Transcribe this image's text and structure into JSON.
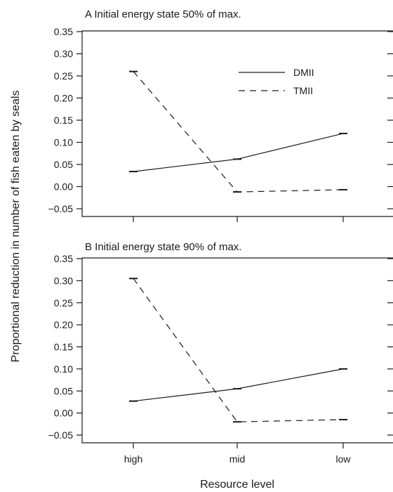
{
  "axis": {
    "ylabel": "Proportional reduction in number of fish eaten by seals",
    "xlabel": "Resource level"
  },
  "legend": [
    {
      "label": "DMII",
      "dash": "solid"
    },
    {
      "label": "TMII",
      "dash": "dashed"
    }
  ],
  "chart_data": [
    {
      "type": "line",
      "title": "A   Initial energy state 50% of max.",
      "categories": [
        "high",
        "mid",
        "low"
      ],
      "ylim": [
        -0.05,
        0.35
      ],
      "yticks": [
        -0.05,
        0.0,
        0.05,
        0.1,
        0.15,
        0.2,
        0.25,
        0.3,
        0.35
      ],
      "ytick_labels": [
        "−0.05",
        "0.00",
        "0.05",
        "0.10",
        "0.15",
        "0.20",
        "0.25",
        "0.30",
        "0.35"
      ],
      "show_x_tick_labels": false,
      "legend_position": "top-right",
      "series": [
        {
          "name": "DMII",
          "dash": "solid",
          "values": [
            0.034,
            0.062,
            0.12
          ]
        },
        {
          "name": "TMII",
          "dash": "dashed",
          "values": [
            0.26,
            -0.012,
            -0.007
          ]
        }
      ]
    },
    {
      "type": "line",
      "title": "B   Initial energy state 90% of max.",
      "categories": [
        "high",
        "mid",
        "low"
      ],
      "ylim": [
        -0.05,
        0.35
      ],
      "yticks": [
        -0.05,
        0.0,
        0.05,
        0.1,
        0.15,
        0.2,
        0.25,
        0.3,
        0.35
      ],
      "ytick_labels": [
        "−0.05",
        "0.00",
        "0.05",
        "0.10",
        "0.15",
        "0.20",
        "0.25",
        "0.30",
        "0.35"
      ],
      "show_x_tick_labels": true,
      "series": [
        {
          "name": "DMII",
          "dash": "solid",
          "values": [
            0.027,
            0.055,
            0.1
          ]
        },
        {
          "name": "TMII",
          "dash": "dashed",
          "values": [
            0.305,
            -0.02,
            -0.015
          ]
        }
      ]
    }
  ]
}
